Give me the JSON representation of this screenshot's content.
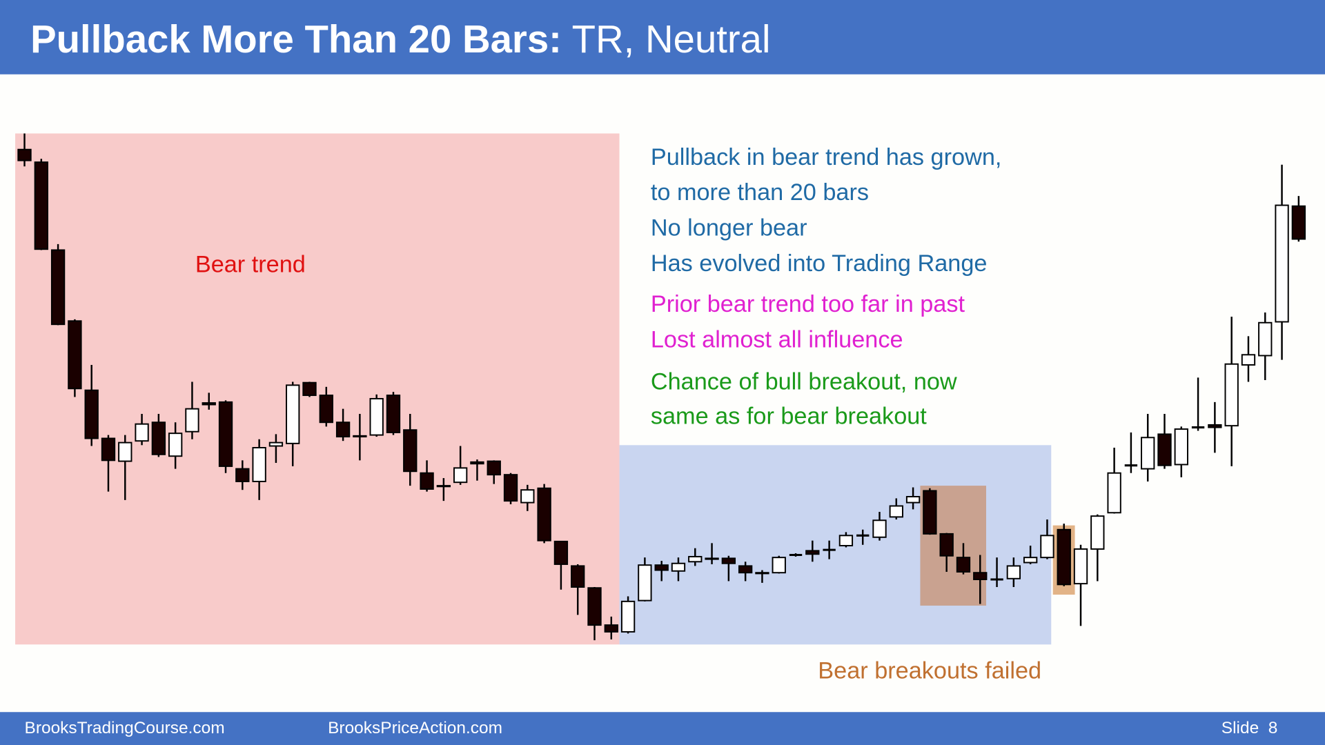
{
  "chart_data": {
    "type": "candlestick",
    "title_bold": "Pullback More Than 20 Bars:",
    "title_rest": "TR, Neutral",
    "ylim": [
      137,
      742
    ],
    "bull_color": "#ffffff",
    "bear_color": "#1a0000",
    "annotations": [
      {
        "lines": [
          "Bear trend"
        ],
        "color": "#e01010"
      },
      {
        "lines": [
          "Pullback in bear trend has grown,",
          "to more than 20 bars",
          "No longer bear",
          "Has evolved  into Trading Range"
        ],
        "color": "#1f6aa5"
      },
      {
        "lines": [
          "Prior bear trend too far in past",
          "Lost almost all influence"
        ],
        "color": "#e020d0"
      },
      {
        "lines": [
          "Chance of bull breakout, now",
          "same as for bear breakout"
        ],
        "color": "#1a9a1a"
      },
      {
        "lines": [
          "Bear breakouts failed"
        ],
        "color": "#c07030"
      }
    ],
    "open": [
      723,
      708,
      604,
      520,
      438,
      381,
      354,
      378,
      400,
      360,
      389,
      423,
      424,
      345,
      330,
      372,
      375,
      447,
      432,
      400,
      384,
      385,
      432,
      391,
      340,
      325,
      329,
      353,
      354,
      338,
      305,
      322,
      259,
      230,
      204,
      160,
      152,
      189,
      231,
      224,
      235,
      239,
      239,
      230,
      222,
      222,
      243,
      248,
      249,
      254,
      266,
      264,
      288,
      305,
      319,
      268,
      240,
      222,
      214,
      215,
      234,
      240,
      273,
      209,
      250,
      293,
      349,
      345,
      386,
      350,
      394,
      397,
      396,
      468,
      479,
      519,
      656
    ],
    "high": [
      742,
      712,
      611,
      522,
      468,
      385,
      385,
      410,
      410,
      400,
      448,
      435,
      426,
      355,
      380,
      386,
      448,
      448,
      442,
      416,
      410,
      433,
      436,
      410,
      355,
      334,
      372,
      356,
      355,
      340,
      326,
      327,
      259,
      232,
      205,
      170,
      194,
      240,
      236,
      240,
      251,
      257,
      242,
      235,
      225,
      242,
      245,
      260,
      260,
      270,
      273,
      294,
      310,
      323,
      322,
      269,
      257,
      243,
      240,
      240,
      254,
      285,
      280,
      255,
      291,
      370,
      388,
      410,
      410,
      395,
      453,
      424,
      525,
      502,
      530,
      705,
      668
    ],
    "low": [
      703,
      604,
      515,
      430,
      372,
      318,
      308,
      373,
      359,
      345,
      380,
      415,
      340,
      320,
      308,
      352,
      348,
      430,
      395,
      378,
      355,
      383,
      385,
      325,
      318,
      307,
      326,
      331,
      327,
      303,
      295,
      257,
      202,
      172,
      142,
      143,
      150,
      188,
      212,
      212,
      230,
      232,
      212,
      212,
      210,
      221,
      241,
      235,
      238,
      252,
      255,
      260,
      285,
      297,
      267,
      223,
      220,
      185,
      205,
      205,
      232,
      238,
      206,
      159,
      212,
      292,
      340,
      330,
      345,
      335,
      390,
      364,
      348,
      448,
      450,
      474,
      614
    ],
    "close": [
      710,
      605,
      516,
      440,
      381,
      355,
      376,
      398,
      362,
      387,
      416,
      421,
      348,
      330,
      370,
      376,
      444,
      432,
      400,
      383,
      383,
      428,
      388,
      342,
      321,
      324,
      346,
      351,
      338,
      307,
      320,
      260,
      232,
      205,
      160,
      152,
      188,
      231,
      225,
      233,
      241,
      238,
      233,
      222,
      221,
      240,
      243,
      244,
      249,
      266,
      266,
      284,
      301,
      312,
      268,
      242,
      223,
      214,
      214,
      230,
      240,
      266,
      208,
      250,
      289,
      340,
      349,
      382,
      349,
      392,
      394,
      394,
      469,
      480,
      518,
      657,
      617
    ]
  },
  "footer": {
    "left": "BrooksTradingCourse.com",
    "middle": "BrooksPriceAction.com",
    "right": "Slide  8"
  }
}
